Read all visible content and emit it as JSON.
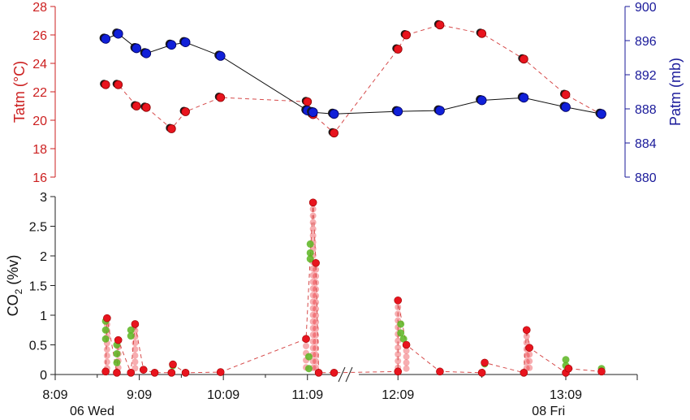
{
  "chart_data": [
    {
      "type": "line",
      "panel": "top",
      "x_unit": "time of day",
      "x_break_between": [
        "11:30",
        "11:55"
      ],
      "left_axis": {
        "label": "Tatm (°C)",
        "ylim": [
          16,
          28
        ],
        "ticks": [
          "16",
          "18",
          "20",
          "22",
          "24",
          "26",
          "28"
        ],
        "color": "#cc1f1f"
      },
      "right_axis": {
        "label": "Patm (mb)",
        "ylim": [
          880,
          900
        ],
        "ticks": [
          "880",
          "884",
          "888",
          "892",
          "896",
          "900"
        ],
        "color": "#1a1a9a"
      },
      "series": [
        {
          "axis": "left",
          "color": "#e8141e",
          "line_style": "dashed",
          "points": [
            {
              "x": "8:45",
              "y": 22.5
            },
            {
              "x": "8:54",
              "y": 22.5
            },
            {
              "x": "9:07",
              "y": 21.0
            },
            {
              "x": "9:14",
              "y": 20.9
            },
            {
              "x": "9:32",
              "y": 19.4
            },
            {
              "x": "9:42",
              "y": 20.6
            },
            {
              "x": "10:07",
              "y": 21.6
            },
            {
              "x": "11:09",
              "y": 21.3
            },
            {
              "x": "11:13",
              "y": 20.4
            },
            {
              "x": "11:28",
              "y": 19.1
            },
            {
              "x": "12:09",
              "y": 25.0
            },
            {
              "x": "12:12",
              "y": 26.0
            },
            {
              "x": "12:24",
              "y": 26.7
            },
            {
              "x": "12:39",
              "y": 26.1
            },
            {
              "x": "12:54",
              "y": 24.3
            },
            {
              "x": "13:09",
              "y": 21.8
            },
            {
              "x": "13:22",
              "y": 20.4
            }
          ]
        },
        {
          "axis": "right",
          "color": "#1020d8",
          "line_style": "solid",
          "points": [
            {
              "x": "8:45",
              "y": 896.2
            },
            {
              "x": "8:54",
              "y": 896.8
            },
            {
              "x": "9:07",
              "y": 895.1
            },
            {
              "x": "9:14",
              "y": 894.5
            },
            {
              "x": "9:32",
              "y": 895.5
            },
            {
              "x": "9:42",
              "y": 895.8
            },
            {
              "x": "10:07",
              "y": 894.2
            },
            {
              "x": "11:09",
              "y": 887.8
            },
            {
              "x": "11:13",
              "y": 887.6
            },
            {
              "x": "11:28",
              "y": 887.4
            },
            {
              "x": "12:09",
              "y": 887.7
            },
            {
              "x": "12:24",
              "y": 887.8
            },
            {
              "x": "12:39",
              "y": 889.0
            },
            {
              "x": "12:54",
              "y": 889.3
            },
            {
              "x": "13:09",
              "y": 888.2
            },
            {
              "x": "13:22",
              "y": 887.4
            }
          ]
        }
      ]
    },
    {
      "type": "scatter",
      "panel": "bottom",
      "ylabel": "CO2 (%v)",
      "ylim": [
        0,
        3
      ],
      "y_ticks": [
        "0",
        "0.5",
        "1",
        "1.5",
        "2",
        "2.5",
        "3"
      ],
      "x_ticks": [
        "8:09",
        "9:09",
        "10:09",
        "11:09",
        "12:09",
        "13:09"
      ],
      "x_day_labels": [
        {
          "at": "8:09",
          "text": "06 Wed"
        },
        {
          "at": "12:54",
          "text": "08 Fri"
        }
      ],
      "x_break_between": [
        "11:30",
        "11:55"
      ],
      "series": [
        {
          "color": "#e8141e",
          "line_style": "dashed",
          "points": [
            {
              "x": "8:45",
              "y": 0.05
            },
            {
              "x": "8:46",
              "y": 0.95
            },
            {
              "x": "8:53",
              "y": 0.03
            },
            {
              "x": "8:54",
              "y": 0.58
            },
            {
              "x": "9:03",
              "y": 0.03
            },
            {
              "x": "9:06",
              "y": 0.85
            },
            {
              "x": "9:12",
              "y": 0.08
            },
            {
              "x": "9:20",
              "y": 0.03
            },
            {
              "x": "9:32",
              "y": 0.03
            },
            {
              "x": "9:33",
              "y": 0.17
            },
            {
              "x": "9:42",
              "y": 0.03
            },
            {
              "x": "10:07",
              "y": 0.04
            },
            {
              "x": "11:08",
              "y": 0.6
            },
            {
              "x": "11:13",
              "y": 2.9
            },
            {
              "x": "11:15",
              "y": 1.88
            },
            {
              "x": "11:17",
              "y": 0.03
            },
            {
              "x": "11:28",
              "y": 0.03
            },
            {
              "x": "12:09",
              "y": 0.05
            },
            {
              "x": "12:09",
              "y": 1.25
            },
            {
              "x": "12:12",
              "y": 0.5
            },
            {
              "x": "12:24",
              "y": 0.05
            },
            {
              "x": "12:39",
              "y": 0.03
            },
            {
              "x": "12:40",
              "y": 0.2
            },
            {
              "x": "12:54",
              "y": 0.03
            },
            {
              "x": "12:55",
              "y": 0.75
            },
            {
              "x": "12:56",
              "y": 0.45
            },
            {
              "x": "13:09",
              "y": 0.03
            },
            {
              "x": "13:10",
              "y": 0.1
            },
            {
              "x": "13:22",
              "y": 0.05
            }
          ]
        },
        {
          "color": "#5ab520",
          "line_style": "none",
          "points": [
            {
              "x": "8:45",
              "y": 0.9
            },
            {
              "x": "8:45",
              "y": 0.75
            },
            {
              "x": "8:45",
              "y": 0.6
            },
            {
              "x": "8:53",
              "y": 0.5
            },
            {
              "x": "8:53",
              "y": 0.35
            },
            {
              "x": "8:53",
              "y": 0.2
            },
            {
              "x": "9:03",
              "y": 0.75
            },
            {
              "x": "9:03",
              "y": 0.65
            },
            {
              "x": "9:33",
              "y": 0.15
            },
            {
              "x": "11:11",
              "y": 2.2
            },
            {
              "x": "11:11",
              "y": 2.05
            },
            {
              "x": "11:11",
              "y": 1.95
            },
            {
              "x": "11:10",
              "y": 0.3
            },
            {
              "x": "11:10",
              "y": 0.1
            },
            {
              "x": "12:10",
              "y": 0.85
            },
            {
              "x": "12:10",
              "y": 0.7
            },
            {
              "x": "12:11",
              "y": 0.6
            },
            {
              "x": "12:40",
              "y": 0.18
            },
            {
              "x": "13:09",
              "y": 0.25
            },
            {
              "x": "13:09",
              "y": 0.15
            },
            {
              "x": "13:22",
              "y": 0.1
            }
          ]
        }
      ]
    }
  ]
}
